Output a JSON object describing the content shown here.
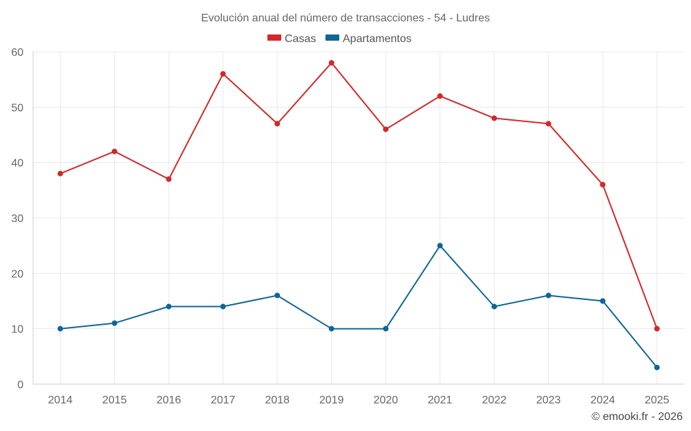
{
  "chart_data": {
    "type": "line",
    "title": "Evolución anual del número de transacciones - 54 - Ludres",
    "categories": [
      "2014",
      "2015",
      "2016",
      "2017",
      "2018",
      "2019",
      "2020",
      "2021",
      "2022",
      "2023",
      "2024",
      "2025"
    ],
    "series": [
      {
        "name": "Casas",
        "color": "#d62728",
        "values": [
          38,
          42,
          37,
          56,
          47,
          58,
          46,
          52,
          48,
          47,
          36,
          10
        ]
      },
      {
        "name": "Apartamentos",
        "color": "#0e6699",
        "values": [
          10,
          11,
          14,
          14,
          16,
          10,
          10,
          25,
          14,
          16,
          15,
          3
        ]
      }
    ],
    "ylim": [
      0,
      60
    ],
    "yticks": [
      0,
      10,
      20,
      30,
      40,
      50,
      60
    ],
    "grid": true,
    "legend_position": "top-center",
    "xlabel": "",
    "ylabel": ""
  },
  "credit": "© emooki.fr - 2026"
}
